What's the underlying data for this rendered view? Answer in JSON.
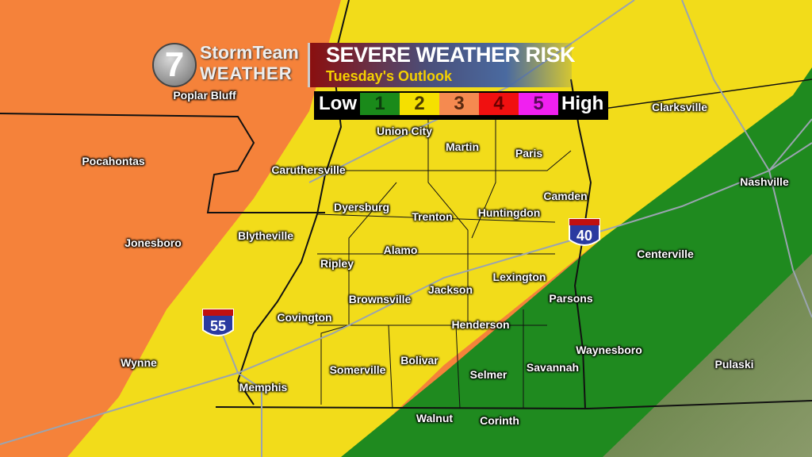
{
  "logo": {
    "number": "7",
    "line1": "StormTeam",
    "line2": "WEATHER"
  },
  "title": {
    "main": "SEVERE WEATHER RISK",
    "subtitle": "Tuesday's Outlook"
  },
  "scale": {
    "low_label": "Low",
    "high_label": "High",
    "levels": [
      {
        "value": "1",
        "color": "#1a8a1a",
        "text_color": "#0d3d0d"
      },
      {
        "value": "2",
        "color": "#f5e000",
        "text_color": "#4a3a00"
      },
      {
        "value": "3",
        "color": "#f58a50",
        "text_color": "#5a2a10"
      },
      {
        "value": "4",
        "color": "#f01010",
        "text_color": "#6a0000"
      },
      {
        "value": "5",
        "color": "#f020f0",
        "text_color": "#5a0a5a"
      }
    ]
  },
  "risk_colors": {
    "orange": "#f5823a",
    "yellow": "#f2dc1a",
    "green": "#1f8a1f"
  },
  "highways": [
    {
      "label": "55",
      "type": "interstate"
    },
    {
      "label": "40",
      "type": "interstate"
    }
  ],
  "cities": [
    "Poplar Bluff",
    "Pocahontas",
    "Caruthersville",
    "Union City",
    "Martin",
    "Paris",
    "Clarksville",
    "Camden",
    "Nashville",
    "Dyersburg",
    "Trenton",
    "Huntingdon",
    "Blytheville",
    "Jonesboro",
    "Alamo",
    "Ripley",
    "Centerville",
    "Lexington",
    "Jackson",
    "Covington",
    "Brownsville",
    "Parsons",
    "Henderson",
    "Waynesboro",
    "Wynne",
    "Bolivar",
    "Pulaski",
    "Selmer",
    "Savannah",
    "Somerville",
    "Memphis",
    "Walnut",
    "Corinth"
  ]
}
